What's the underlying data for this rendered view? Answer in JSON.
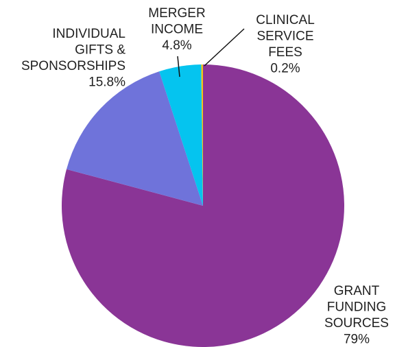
{
  "chart_data": {
    "type": "pie",
    "categories": [
      [
        "GRANT",
        "FUNDING",
        "SOURCES"
      ],
      [
        "INDIVIDUAL",
        "GIFTS &",
        "SPONSORSHIPS"
      ],
      [
        "MERGER",
        "INCOME"
      ],
      [
        "CLINICAL",
        "SERVICE",
        "FEES"
      ]
    ],
    "values": [
      79,
      15.8,
      4.8,
      0.2
    ],
    "value_labels": [
      "79%",
      "15.8%",
      "4.8%",
      "0.2%"
    ],
    "colors": [
      "#8a3596",
      "#6f73da",
      "#05c4ef",
      "#f3c317"
    ]
  }
}
